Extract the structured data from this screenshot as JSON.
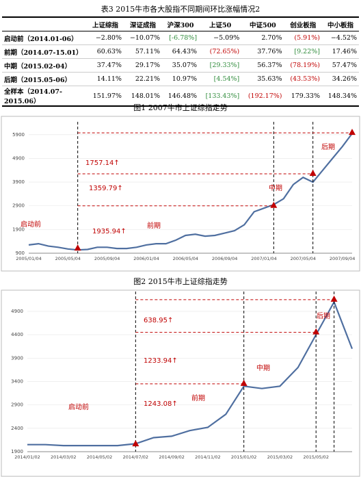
{
  "table": {
    "title": "表3  2015牛市各大股指不同期间环比涨幅情况2",
    "header": [
      "",
      "上证综指",
      "深证成指",
      "沪深300",
      "上证50",
      "中证500",
      "创业板指",
      "中小板指"
    ],
    "rows": [
      [
        "启动前（2014.01-06）",
        "−2.80%",
        "−10.07%",
        "[-6.78%]",
        "−5.09%",
        "2.70%",
        "(5.91%)",
        "−4.52%"
      ],
      [
        "前期（2014.07-15.01）",
        "60.63%",
        "57.11%",
        "64.43%",
        "(72.65%)",
        "37.76%",
        "[9.22%]",
        "17.46%"
      ],
      [
        "中期（2015.02-04）",
        "37.47%",
        "29.17%",
        "35.07%",
        "[29.33%]",
        "56.37%",
        "(78.19%)",
        "57.47%"
      ],
      [
        "后期（2015.05-06）",
        "14.11%",
        "22.21%",
        "10.97%",
        "[4.54%]",
        "35.63%",
        "(43.53%)",
        "34.26%"
      ],
      [
        "全样本（2014.07-2015.06）",
        "151.97%",
        "148.01%",
        "146.48%",
        "[133.43%]",
        "(192.17%)",
        "179.33%",
        "148.34%"
      ]
    ]
  },
  "chart_data": [
    {
      "type": "line",
      "title": "图1  2007牛市上证综指走势",
      "color": "#4f6fa0",
      "annotation_color": "#c00000",
      "categories": [
        "2005/01/04",
        null,
        null,
        null,
        "2005/05/04",
        null,
        null,
        null,
        "2005/09/04",
        null,
        null,
        null,
        "2006/01/04",
        null,
        null,
        null,
        "2006/05/04",
        null,
        null,
        null,
        "2006/09/04",
        null,
        null,
        null,
        "2007/01/04",
        null,
        null,
        null,
        "2007/05/04",
        null,
        null,
        null,
        "2007/09/04",
        null
      ],
      "values": [
        1250,
        1300,
        1200,
        1150,
        1080,
        1040,
        1060,
        1150,
        1150,
        1100,
        1100,
        1150,
        1250,
        1300,
        1300,
        1450,
        1650,
        1700,
        1620,
        1650,
        1750,
        1850,
        2100,
        2650,
        2800,
        2950,
        3200,
        3800,
        4100,
        3900,
        4400,
        4900,
        5400,
        5950
      ],
      "ylim": [
        900,
        6300
      ],
      "yticks": [
        900,
        1900,
        2900,
        3900,
        4900,
        5900
      ],
      "phase_points": [
        {
          "index": 5,
          "value": 1100
        },
        {
          "index": 25,
          "value": 2900
        },
        {
          "index": 29,
          "value": 4250
        },
        {
          "index": 33,
          "value": 5980
        }
      ],
      "annotations": [
        "启动前",
        "前期",
        "中期",
        "后期",
        "1757.14↑",
        "1359.79↑",
        "1935.94↑"
      ]
    },
    {
      "type": "line",
      "title": "图2  2015牛市上证综指走势",
      "color": "#4f6fa0",
      "annotation_color": "#c00000",
      "categories": [
        "2014/01/02",
        null,
        "2014/03/02",
        null,
        "2014/05/02",
        null,
        "2014/07/02",
        null,
        "2014/09/02",
        null,
        "2014/11/02",
        null,
        "2015/01/02",
        null,
        "2015/03/02",
        null,
        "2015/05/02",
        null,
        null
      ],
      "values": [
        2050,
        2050,
        2030,
        2030,
        2030,
        2030,
        2070,
        2200,
        2230,
        2350,
        2420,
        2700,
        3300,
        3250,
        3300,
        3700,
        4400,
        5100,
        4100
      ],
      "ylim": [
        1900,
        5250
      ],
      "yticks": [
        1900,
        2400,
        2900,
        3400,
        3900,
        4400,
        4900
      ],
      "phase_points": [
        {
          "index": 6,
          "value": 2060
        },
        {
          "index": 12,
          "value": 3350
        },
        {
          "index": 16,
          "value": 4450
        },
        {
          "index": 17,
          "value": 5150
        }
      ],
      "annotations": [
        "638.95↑",
        "1233.94↑",
        "1243.08↑",
        "启动前",
        "前期",
        "中期",
        "后期"
      ]
    }
  ]
}
